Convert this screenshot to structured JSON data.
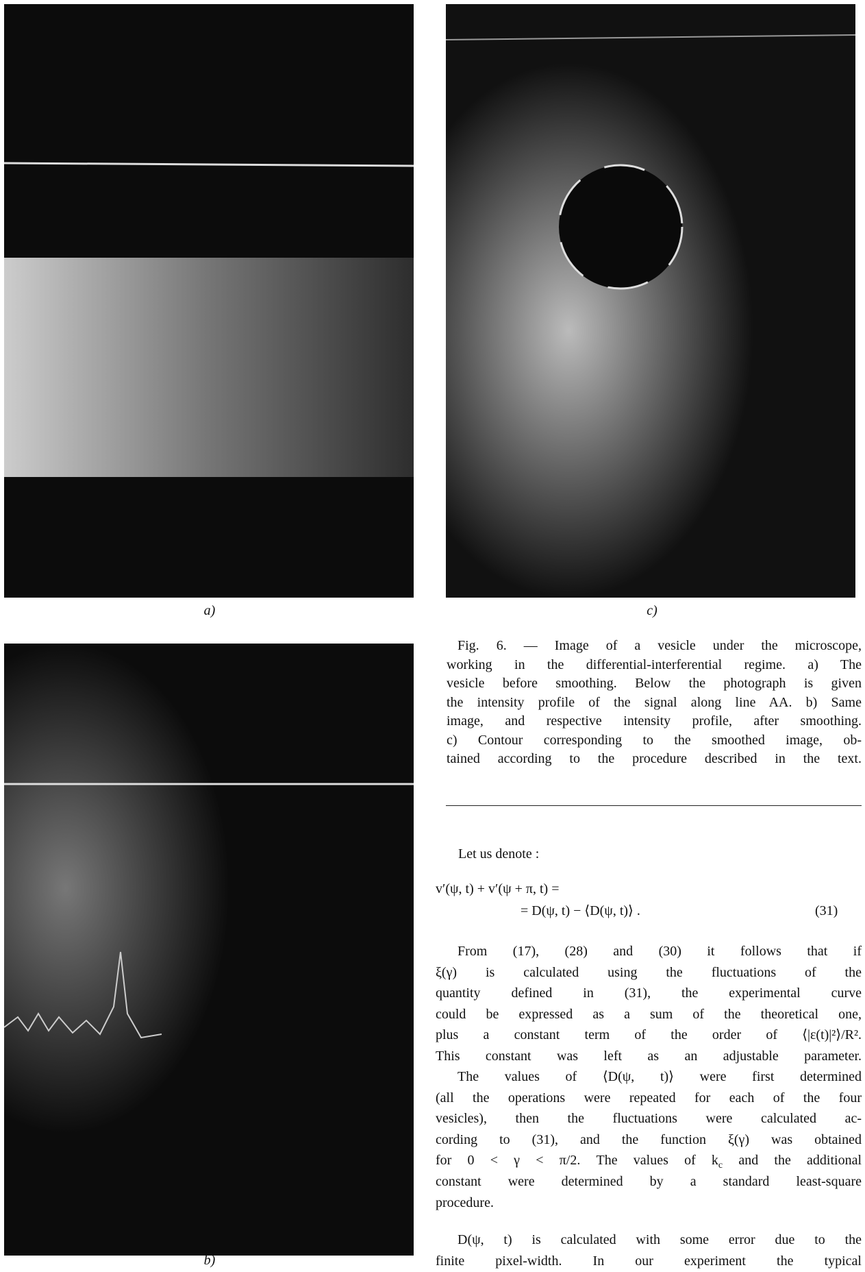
{
  "figure": {
    "panels": [
      {
        "label": "a)"
      },
      {
        "label": "c)"
      },
      {
        "label": "b)"
      }
    ],
    "caption": [
      "Fig. 6. — Image of a vesicle under the microscope,",
      "working in the differential-interferential regime. a) The",
      "vesicle before smoothing. Below the photograph is given",
      "the intensity profile of the signal along line AA. b) Same",
      "image, and respective intensity profile, after smoothing.",
      "c) Contour corresponding to the smoothed image, ob-",
      "tained according to the procedure described in the text."
    ]
  },
  "body": {
    "intro": "Let us denote :",
    "equation": {
      "left": "v′(ψ, t) + v′(ψ + π, t) =",
      "right": "= D(ψ, t) − ⟨D(ψ, t)⟩ .",
      "number": "(31)"
    },
    "paragraphs": [
      [
        "From (17), (28) and (30) it follows that if",
        "ξ(γ) is calculated using the fluctuations of the",
        "quantity defined in (31), the experimental curve",
        "could be expressed as a sum of the theoretical one,",
        "plus a constant term of the order of ⟨|ε(t)|²⟩/R².",
        "This constant was left as an adjustable parameter."
      ],
      [
        "The values of ⟨D(ψ, t)⟩ were first determined",
        "(all the operations were repeated for each of the four",
        "vesicles), then the fluctuations were calculated ac-",
        "cording to (31), and the function ξ(γ) was obtained",
        [
          "for 0 < γ < π/2. The values of k",
          "c",
          " and the additional"
        ],
        "constant were determined by a standard least-square",
        "procedure."
      ],
      [
        "D(ψ, t) is calculated with some error due to the",
        "finite pixel-width. In our experiment the typical"
      ]
    ]
  }
}
